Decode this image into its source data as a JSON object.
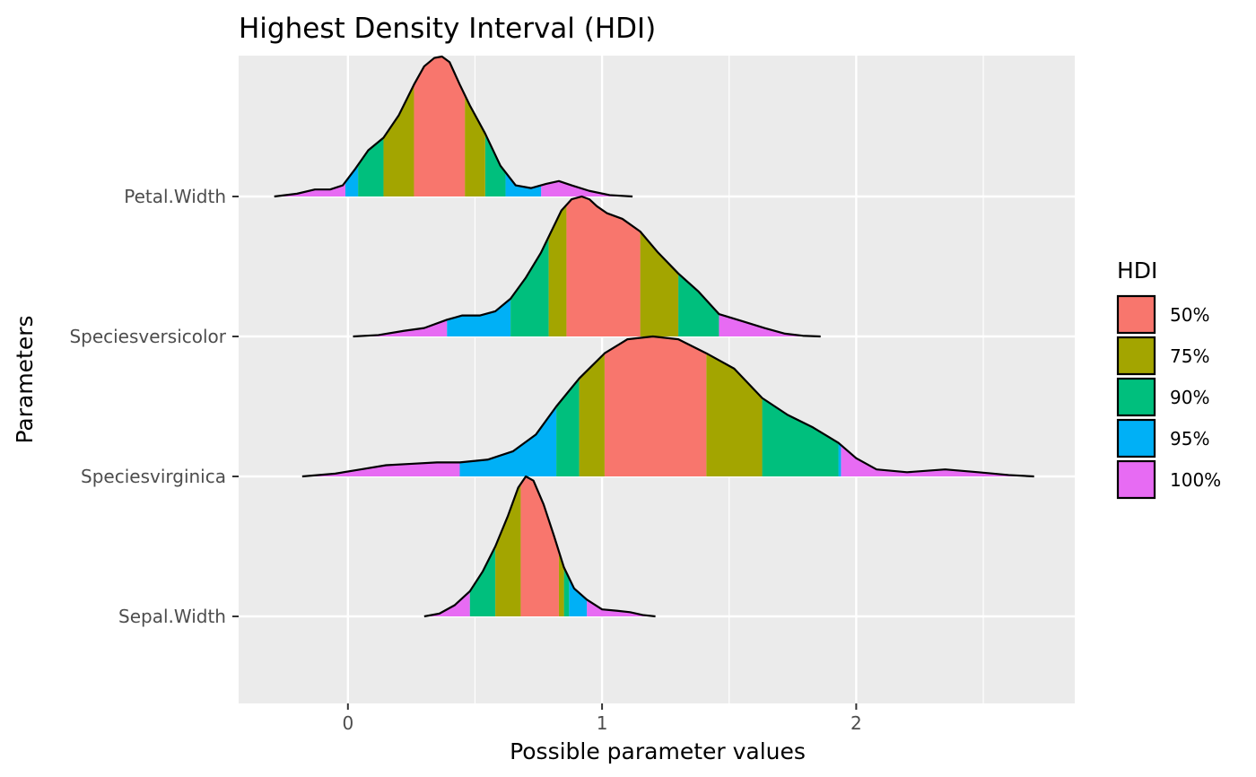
{
  "chart_data": {
    "type": "ridgeline density (area)",
    "title": "Highest Density Interval (HDI)",
    "xlabel": "Possible parameter values",
    "ylabel": "Parameters",
    "xlim": [
      -0.43,
      2.86
    ],
    "x_ticks": [
      0,
      1,
      2
    ],
    "x_tick_labels": [
      "0",
      "1",
      "2"
    ],
    "x_minor_ticks": [
      0.5,
      1.5,
      2.5
    ],
    "grid": true,
    "background": "#ebebeb",
    "legend": {
      "title": "HDI",
      "position": "right",
      "entries": [
        {
          "label": "50%",
          "color": "#F8766D"
        },
        {
          "label": "75%",
          "color": "#A3A500"
        },
        {
          "label": "90%",
          "color": "#00BF7D"
        },
        {
          "label": "95%",
          "color": "#00B0F6"
        },
        {
          "label": "100%",
          "color": "#E76BF3"
        }
      ]
    },
    "series": [
      {
        "name": "Petal.Width",
        "intervals": {
          "50%": [
            0.26,
            0.46
          ],
          "75%": [
            0.14,
            0.54
          ],
          "90%": [
            0.04,
            0.62
          ],
          "95%": [
            -0.01,
            0.76
          ],
          "100%": [
            -0.29,
            1.12
          ]
        },
        "density": {
          "x": [
            -0.29,
            -0.2,
            -0.13,
            -0.07,
            -0.02,
            0.03,
            0.08,
            0.14,
            0.2,
            0.26,
            0.3,
            0.34,
            0.37,
            0.4,
            0.44,
            0.48,
            0.54,
            0.6,
            0.66,
            0.72,
            0.78,
            0.83,
            0.88,
            0.95,
            1.03,
            1.12
          ],
          "y": [
            0.0,
            0.02,
            0.05,
            0.05,
            0.08,
            0.2,
            0.33,
            0.42,
            0.58,
            0.8,
            0.93,
            0.99,
            1.0,
            0.96,
            0.8,
            0.65,
            0.45,
            0.22,
            0.08,
            0.06,
            0.09,
            0.11,
            0.08,
            0.04,
            0.01,
            0.0
          ]
        }
      },
      {
        "name": "Speciesversicolor",
        "intervals": {
          "50%": [
            0.86,
            1.15
          ],
          "75%": [
            0.79,
            1.3
          ],
          "90%": [
            0.64,
            1.46
          ],
          "95%": [
            0.39,
            1.46
          ],
          "100%": [
            0.02,
            1.86
          ]
        },
        "density": {
          "x": [
            0.02,
            0.12,
            0.22,
            0.3,
            0.39,
            0.45,
            0.52,
            0.58,
            0.64,
            0.7,
            0.76,
            0.8,
            0.84,
            0.88,
            0.92,
            0.95,
            0.98,
            1.02,
            1.08,
            1.15,
            1.22,
            1.3,
            1.38,
            1.46,
            1.55,
            1.64,
            1.72,
            1.79,
            1.86
          ],
          "y": [
            0.0,
            0.01,
            0.04,
            0.06,
            0.12,
            0.15,
            0.15,
            0.18,
            0.27,
            0.42,
            0.6,
            0.75,
            0.9,
            0.98,
            1.0,
            0.98,
            0.93,
            0.88,
            0.84,
            0.75,
            0.6,
            0.45,
            0.32,
            0.16,
            0.11,
            0.06,
            0.02,
            0.005,
            0.0
          ]
        }
      },
      {
        "name": "Speciesvirginica",
        "intervals": {
          "50%": [
            1.01,
            1.41
          ],
          "75%": [
            0.91,
            1.63
          ],
          "90%": [
            0.82,
            1.93
          ],
          "95%": [
            0.44,
            1.94
          ],
          "100%": [
            -0.18,
            2.7
          ]
        },
        "density": {
          "x": [
            -0.18,
            -0.05,
            0.05,
            0.15,
            0.25,
            0.35,
            0.44,
            0.55,
            0.65,
            0.74,
            0.82,
            0.91,
            1.01,
            1.1,
            1.2,
            1.3,
            1.41,
            1.52,
            1.63,
            1.73,
            1.83,
            1.93,
            2.0,
            2.08,
            2.2,
            2.35,
            2.48,
            2.6,
            2.7
          ],
          "y": [
            0.0,
            0.02,
            0.05,
            0.08,
            0.09,
            0.1,
            0.1,
            0.12,
            0.18,
            0.3,
            0.5,
            0.7,
            0.88,
            0.98,
            1.0,
            0.98,
            0.88,
            0.77,
            0.56,
            0.44,
            0.35,
            0.24,
            0.13,
            0.05,
            0.03,
            0.05,
            0.03,
            0.01,
            0.0
          ]
        }
      },
      {
        "name": "Sepal.Width",
        "intervals": {
          "50%": [
            0.68,
            0.83
          ],
          "75%": [
            0.58,
            0.85
          ],
          "90%": [
            0.48,
            0.87
          ],
          "95%": [
            0.48,
            0.94
          ],
          "100%": [
            0.3,
            1.21
          ]
        },
        "density": {
          "x": [
            0.3,
            0.36,
            0.42,
            0.48,
            0.53,
            0.58,
            0.63,
            0.67,
            0.7,
            0.73,
            0.77,
            0.81,
            0.85,
            0.89,
            0.94,
            1.0,
            1.06,
            1.11,
            1.16,
            1.21
          ],
          "y": [
            0.0,
            0.02,
            0.08,
            0.18,
            0.32,
            0.5,
            0.72,
            0.92,
            1.0,
            0.97,
            0.8,
            0.58,
            0.35,
            0.2,
            0.12,
            0.05,
            0.04,
            0.03,
            0.01,
            0.0
          ]
        }
      }
    ]
  }
}
